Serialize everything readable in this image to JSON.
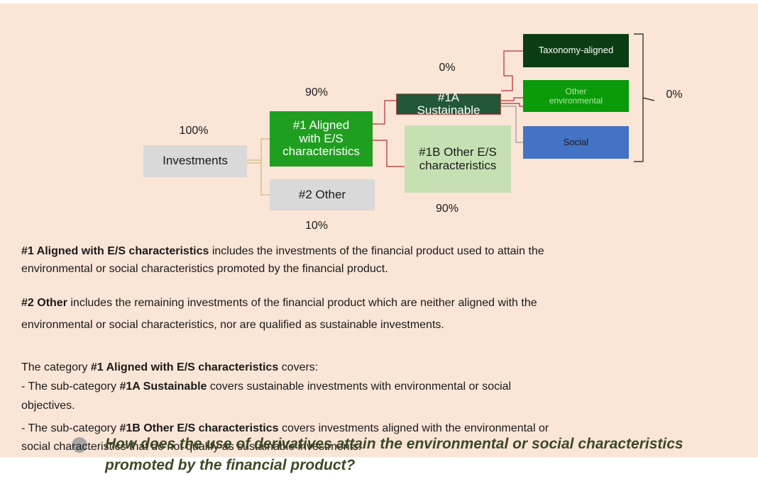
{
  "diagram": {
    "nodes": [
      {
        "id": "investments",
        "label": [
          "Investments"
        ],
        "percent": "100%"
      },
      {
        "id": "aligned",
        "label": [
          "#1 Aligned",
          "with E/S",
          "characteristics"
        ],
        "percent": "90%"
      },
      {
        "id": "other",
        "label": [
          "#2 Other"
        ],
        "percent": "10%"
      },
      {
        "id": "sustainable",
        "label": [
          "#1A",
          "Sustainable"
        ],
        "percent": "0%"
      },
      {
        "id": "other_es",
        "label": [
          "#1B Other E/S",
          "characteristics"
        ],
        "percent": "90%"
      },
      {
        "id": "taxonomy",
        "label": [
          "Taxonomy-aligned"
        ]
      },
      {
        "id": "other_env",
        "label": [
          "Other",
          "environmental"
        ]
      },
      {
        "id": "social",
        "label": [
          "Social"
        ]
      }
    ],
    "bracket_percent": "0%"
  },
  "paragraphs": [
    [
      [
        {
          "text": "#1 Aligned with E/S characteristics",
          "bold": true
        },
        {
          "text": " includes the investments of the financial product used to attain the"
        }
      ],
      [
        {
          "text": "environmental or social characteristics promoted by the financial product."
        }
      ]
    ],
    [
      [
        {
          "text": "#2 Other",
          "bold": true
        },
        {
          "text": " includes the remaining investments of the financial product which are neither aligned with the"
        }
      ],
      [
        {
          "text": "environmental or social characteristics, nor are qualified as sustainable investments."
        }
      ]
    ],
    [
      [
        {
          "text": "The category "
        },
        {
          "text": "#1 Aligned with E/S characteristics",
          "bold": true
        },
        {
          "text": " covers:"
        }
      ],
      [
        {
          "text": "- The sub-category "
        },
        {
          "text": "#1A Sustainable",
          "bold": true
        },
        {
          "text": " covers sustainable investments with environmental or social"
        }
      ],
      [
        {
          "text": "objectives."
        }
      ],
      [
        {
          "text": "- The sub-category "
        },
        {
          "text": "#1B Other E/S characteristics",
          "bold": true
        },
        {
          "text": " covers investments aligned with the environmental or"
        }
      ],
      [
        {
          "text": "social characteristics that do not qualify as sustainable investments."
        }
      ]
    ]
  ],
  "heading": {
    "lines": [
      "How does the use of derivatives attain the environmental or social characteristics",
      "promoted by the financial product?"
    ]
  }
}
